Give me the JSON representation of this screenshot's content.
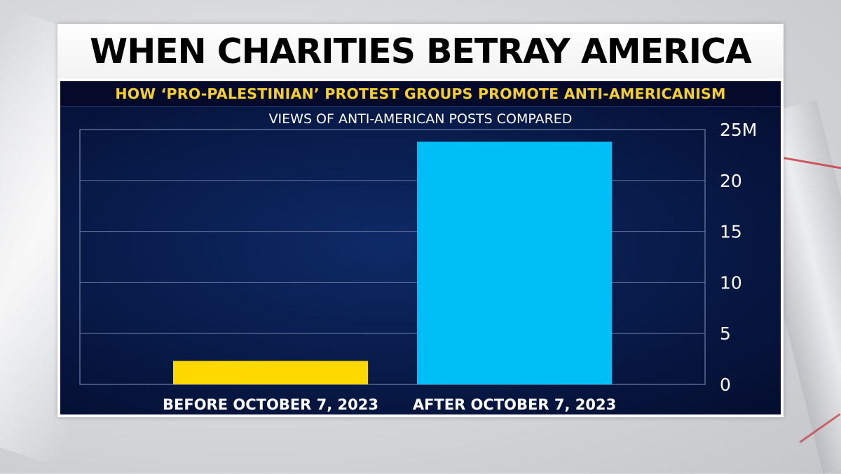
{
  "header": {
    "title": "WHEN CHARITIES BETRAY AMERICA",
    "subtitle": "HOW ‘PRO-PALESTINIAN’ PROTEST GROUPS PROMOTE ANTI-AMERICANISM"
  },
  "chart_data": {
    "type": "bar",
    "title": "VIEWS OF ANTI-AMERICAN POSTS COMPARED",
    "categories": [
      "BEFORE OCTOBER 7, 2023",
      "AFTER OCTOBER 7, 2023"
    ],
    "values": [
      2.3,
      23.8
    ],
    "bar_colors": [
      "#ffd800",
      "#00bff7"
    ],
    "ylim": [
      0,
      25
    ],
    "yticks": [
      "0",
      "5",
      "10",
      "15",
      "20",
      "25M"
    ],
    "grid": true,
    "yaxis_position": "right"
  },
  "colors": {
    "subtitle_text": "#f5cf2a",
    "chart_background": "#081a48"
  }
}
